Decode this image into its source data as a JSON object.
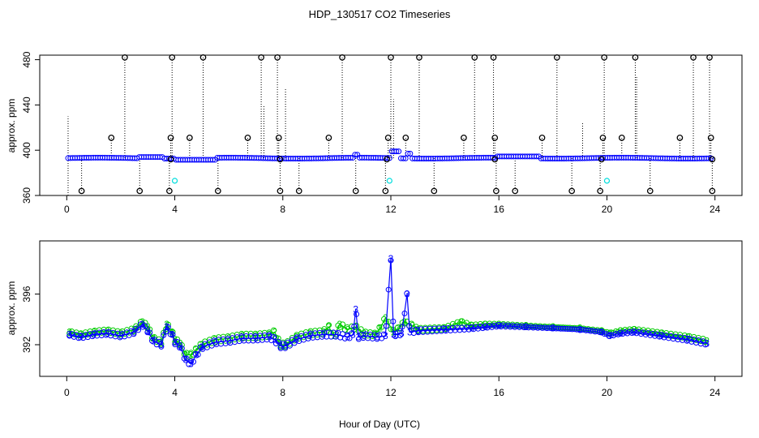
{
  "figure": {
    "title": "HDP_130517  CO2 Timeseries",
    "xlabel": "Hour of Day (UTC)"
  },
  "colors": {
    "blue": "#0000ff",
    "green": "#00cc00",
    "cyan": "#00dddd",
    "black": "#000000"
  },
  "chart_data": [
    {
      "type": "scatter",
      "panel": "top",
      "ylabel": "approx. ppm",
      "xlim": [
        -1,
        25
      ],
      "ylim": [
        360,
        484
      ],
      "xticks": [
        "0",
        "4",
        "8",
        "12",
        "16",
        "20",
        "24"
      ],
      "yticks": [
        "360",
        "400",
        "440",
        "480"
      ],
      "series": [
        {
          "note": "baseline",
          "x_range": [
            0.05,
            23.9
          ],
          "value": 393
        },
        {
          "note": "flagged highs",
          "x": [
            2.15,
            3.9,
            5.05,
            7.2,
            7.8,
            10.2,
            12.0,
            13.05,
            15.1,
            15.8,
            18.15,
            19.9,
            21.05,
            23.2,
            23.8
          ],
          "values": [
            482,
            482,
            482,
            482,
            482,
            482,
            482,
            482,
            482,
            482,
            482,
            482,
            482,
            482,
            482
          ]
        },
        {
          "note": "flagged mid",
          "x": [
            1.65,
            3.85,
            4.55,
            6.7,
            7.85,
            9.7,
            11.9,
            12.55,
            14.7,
            15.85,
            17.6,
            19.85,
            20.55,
            22.7,
            23.85
          ],
          "values": [
            411,
            411,
            411,
            411,
            411,
            411,
            411,
            411,
            411,
            411,
            411,
            411,
            411,
            411,
            411
          ]
        },
        {
          "note": "flagged lows",
          "x": [
            0.55,
            2.7,
            3.8,
            5.6,
            7.9,
            8.6,
            10.7,
            11.8,
            13.6,
            15.9,
            16.6,
            18.7,
            19.75,
            21.6,
            23.9
          ],
          "values": [
            364,
            364,
            364,
            364,
            364,
            364,
            364,
            364,
            364,
            364,
            364,
            364,
            364,
            364,
            364
          ]
        },
        {
          "note": "cyan points",
          "x": [
            4.0,
            11.95,
            20.0
          ],
          "values": [
            373,
            373,
            373
          ]
        }
      ]
    },
    {
      "type": "line",
      "panel": "bottom",
      "ylabel": "approx. ppm",
      "xlim": [
        -1,
        25
      ],
      "ylim": [
        389.5,
        400.2
      ],
      "xticks": [
        "0",
        "4",
        "8",
        "12",
        "16",
        "20",
        "24"
      ],
      "yticks": [
        "392",
        "396"
      ],
      "point_label_blue": "3",
      "point_label_green": "2",
      "series": [
        {
          "name": "3",
          "x": [
            0.1,
            0.5,
            1,
            1.5,
            2,
            2.5,
            2.8,
            3.0,
            3.2,
            3.5,
            3.7,
            3.9,
            4.0,
            4.2,
            4.4,
            4.6,
            4.8,
            5.0,
            5.5,
            6,
            6.5,
            7,
            7.5,
            7.7,
            7.9,
            8.1,
            8.5,
            9,
            9.5,
            10,
            10.4,
            10.6,
            10.7,
            10.8,
            11,
            11.5,
            11.8,
            12.0,
            12.1,
            12.2,
            12.4,
            12.6,
            12.7,
            13,
            14,
            15,
            15.5,
            16,
            17,
            18,
            19,
            19.8,
            20.1,
            20.5,
            21,
            22,
            23,
            23.7
          ],
          "values": [
            392.8,
            392.6,
            392.8,
            392.9,
            392.7,
            393.0,
            393.6,
            393.1,
            392.3,
            392.0,
            393.4,
            392.8,
            392.2,
            391.9,
            390.8,
            390.5,
            391.2,
            391.8,
            392.2,
            392.3,
            392.5,
            392.5,
            392.6,
            392.4,
            391.9,
            391.9,
            392.4,
            392.7,
            392.8,
            392.8,
            392.6,
            392.8,
            394.8,
            392.6,
            392.7,
            392.6,
            392.7,
            398.8,
            392.8,
            392.8,
            392.9,
            396.0,
            393.0,
            393.1,
            393.2,
            393.3,
            393.4,
            393.5,
            393.4,
            393.3,
            393.2,
            393.0,
            392.7,
            392.9,
            393.0,
            392.7,
            392.4,
            392.1
          ]
        },
        {
          "name": "2",
          "x": [
            0.1,
            0.5,
            1,
            1.5,
            2,
            2.5,
            2.8,
            3.0,
            3.2,
            3.5,
            3.7,
            3.9,
            4.0,
            4.2,
            4.4,
            4.6,
            4.8,
            5.0,
            5.5,
            6,
            6.5,
            7,
            7.5,
            7.7,
            7.9,
            8.1,
            8.5,
            9,
            9.5,
            9.7,
            9.9,
            10.1,
            10.4,
            10.7,
            11,
            11.4,
            11.6,
            11.8,
            12.1,
            12.3,
            12.5,
            12.8,
            13,
            14,
            14.6,
            15,
            15.5,
            16,
            17,
            18,
            19,
            19.8,
            20.1,
            20.5,
            21,
            22,
            23,
            23.7
          ],
          "values": [
            393.0,
            392.8,
            393.0,
            393.1,
            392.9,
            393.2,
            393.8,
            393.4,
            392.5,
            392.2,
            393.6,
            393.0,
            392.4,
            392.1,
            391.2,
            391.2,
            391.6,
            392.0,
            392.4,
            392.5,
            392.7,
            392.7,
            392.8,
            393.0,
            392.0,
            392.0,
            392.6,
            392.9,
            393.0,
            393.4,
            392.7,
            393.6,
            393.2,
            393.4,
            392.9,
            392.8,
            393.3,
            394.1,
            393.0,
            393.3,
            393.8,
            393.5,
            393.2,
            393.3,
            393.8,
            393.5,
            393.6,
            393.6,
            393.5,
            393.4,
            393.3,
            393.1,
            392.9,
            393.1,
            393.2,
            392.9,
            392.6,
            392.3
          ]
        }
      ]
    }
  ]
}
